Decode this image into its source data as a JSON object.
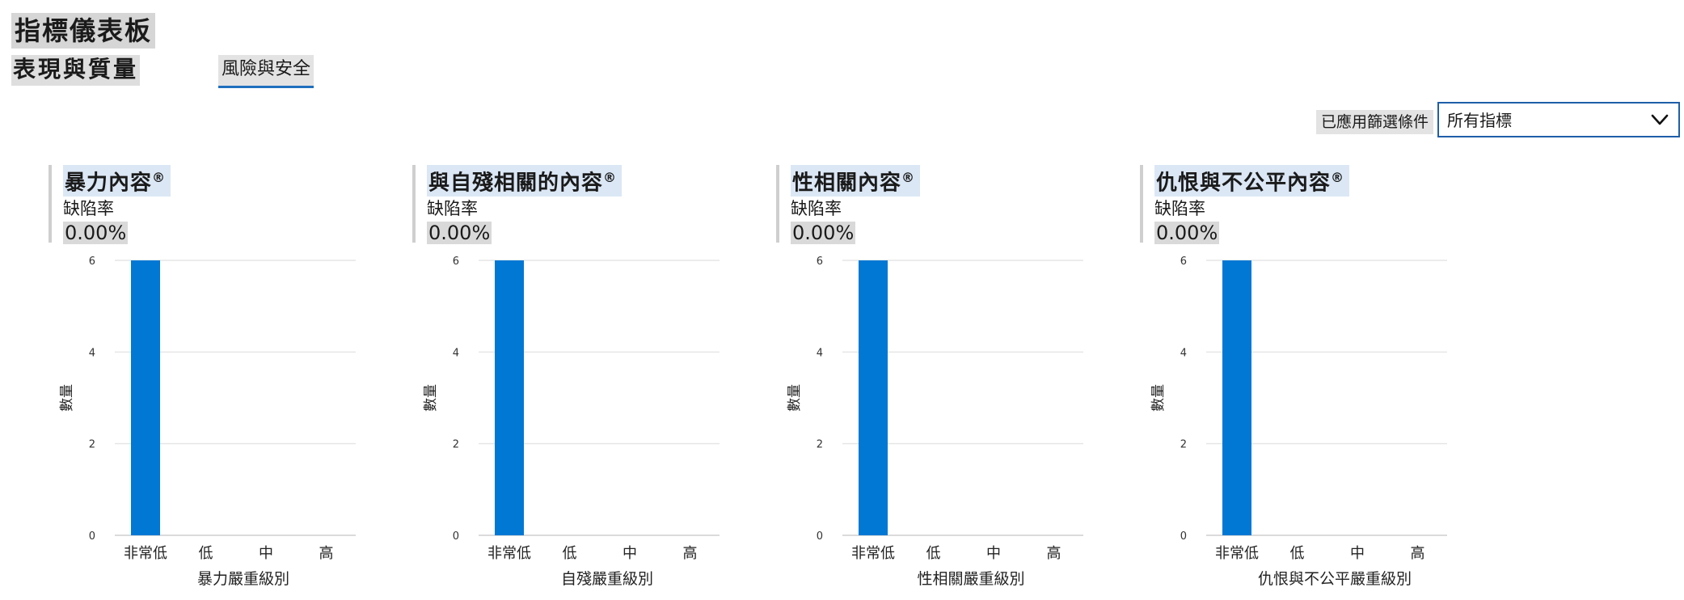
{
  "page_title": "指標儀表板",
  "tabs": [
    {
      "label": "表現與質量",
      "selected": false
    },
    {
      "label": "風險與安全",
      "selected": true
    }
  ],
  "filter": {
    "label": "已應用篩選條件",
    "value": "所有指標"
  },
  "panels": [
    {
      "title": "暴力內容",
      "title_mark": "®",
      "defect_label": "缺陷率",
      "defect_value": "0.00%"
    },
    {
      "title": "與自殘相關的內容",
      "title_mark": "®",
      "defect_label": "缺陷率",
      "defect_value": "0.00%"
    },
    {
      "title": "性相關內容",
      "title_mark": "®",
      "defect_label": "缺陷率",
      "defect_value": "0.00%"
    },
    {
      "title": "仇恨與不公平內容",
      "title_mark": "®",
      "defect_label": "缺陷率",
      "defect_value": "0.00%"
    }
  ],
  "colors": {
    "bar": "#0078d4",
    "tab_underline": "#1f6fbf",
    "select_border": "#1f5fa8",
    "gridline": "#e6e6e6"
  },
  "chart_data": [
    {
      "type": "bar",
      "categories": [
        "非常低",
        "低",
        "中",
        "高"
      ],
      "values": [
        6,
        0,
        0,
        0
      ],
      "xlabel": "暴力嚴重級別",
      "ylabel": "數量",
      "yticks": [
        "0",
        "2",
        "4",
        "6"
      ],
      "ylim": [
        0,
        6
      ],
      "grid": true
    },
    {
      "type": "bar",
      "categories": [
        "非常低",
        "低",
        "中",
        "高"
      ],
      "values": [
        6,
        0,
        0,
        0
      ],
      "xlabel": "自殘嚴重級別",
      "ylabel": "數量",
      "yticks": [
        "0",
        "2",
        "4",
        "6"
      ],
      "ylim": [
        0,
        6
      ],
      "grid": true
    },
    {
      "type": "bar",
      "categories": [
        "非常低",
        "低",
        "中",
        "高"
      ],
      "values": [
        6,
        0,
        0,
        0
      ],
      "xlabel": "性相關嚴重級別",
      "ylabel": "數量",
      "yticks": [
        "0",
        "2",
        "4",
        "6"
      ],
      "ylim": [
        0,
        6
      ],
      "grid": true
    },
    {
      "type": "bar",
      "categories": [
        "非常低",
        "低",
        "中",
        "高"
      ],
      "values": [
        6,
        0,
        0,
        0
      ],
      "xlabel": "仇恨與不公平嚴重級別",
      "ylabel": "數量",
      "yticks": [
        "0",
        "2",
        "4",
        "6"
      ],
      "ylim": [
        0,
        6
      ],
      "grid": true
    }
  ]
}
